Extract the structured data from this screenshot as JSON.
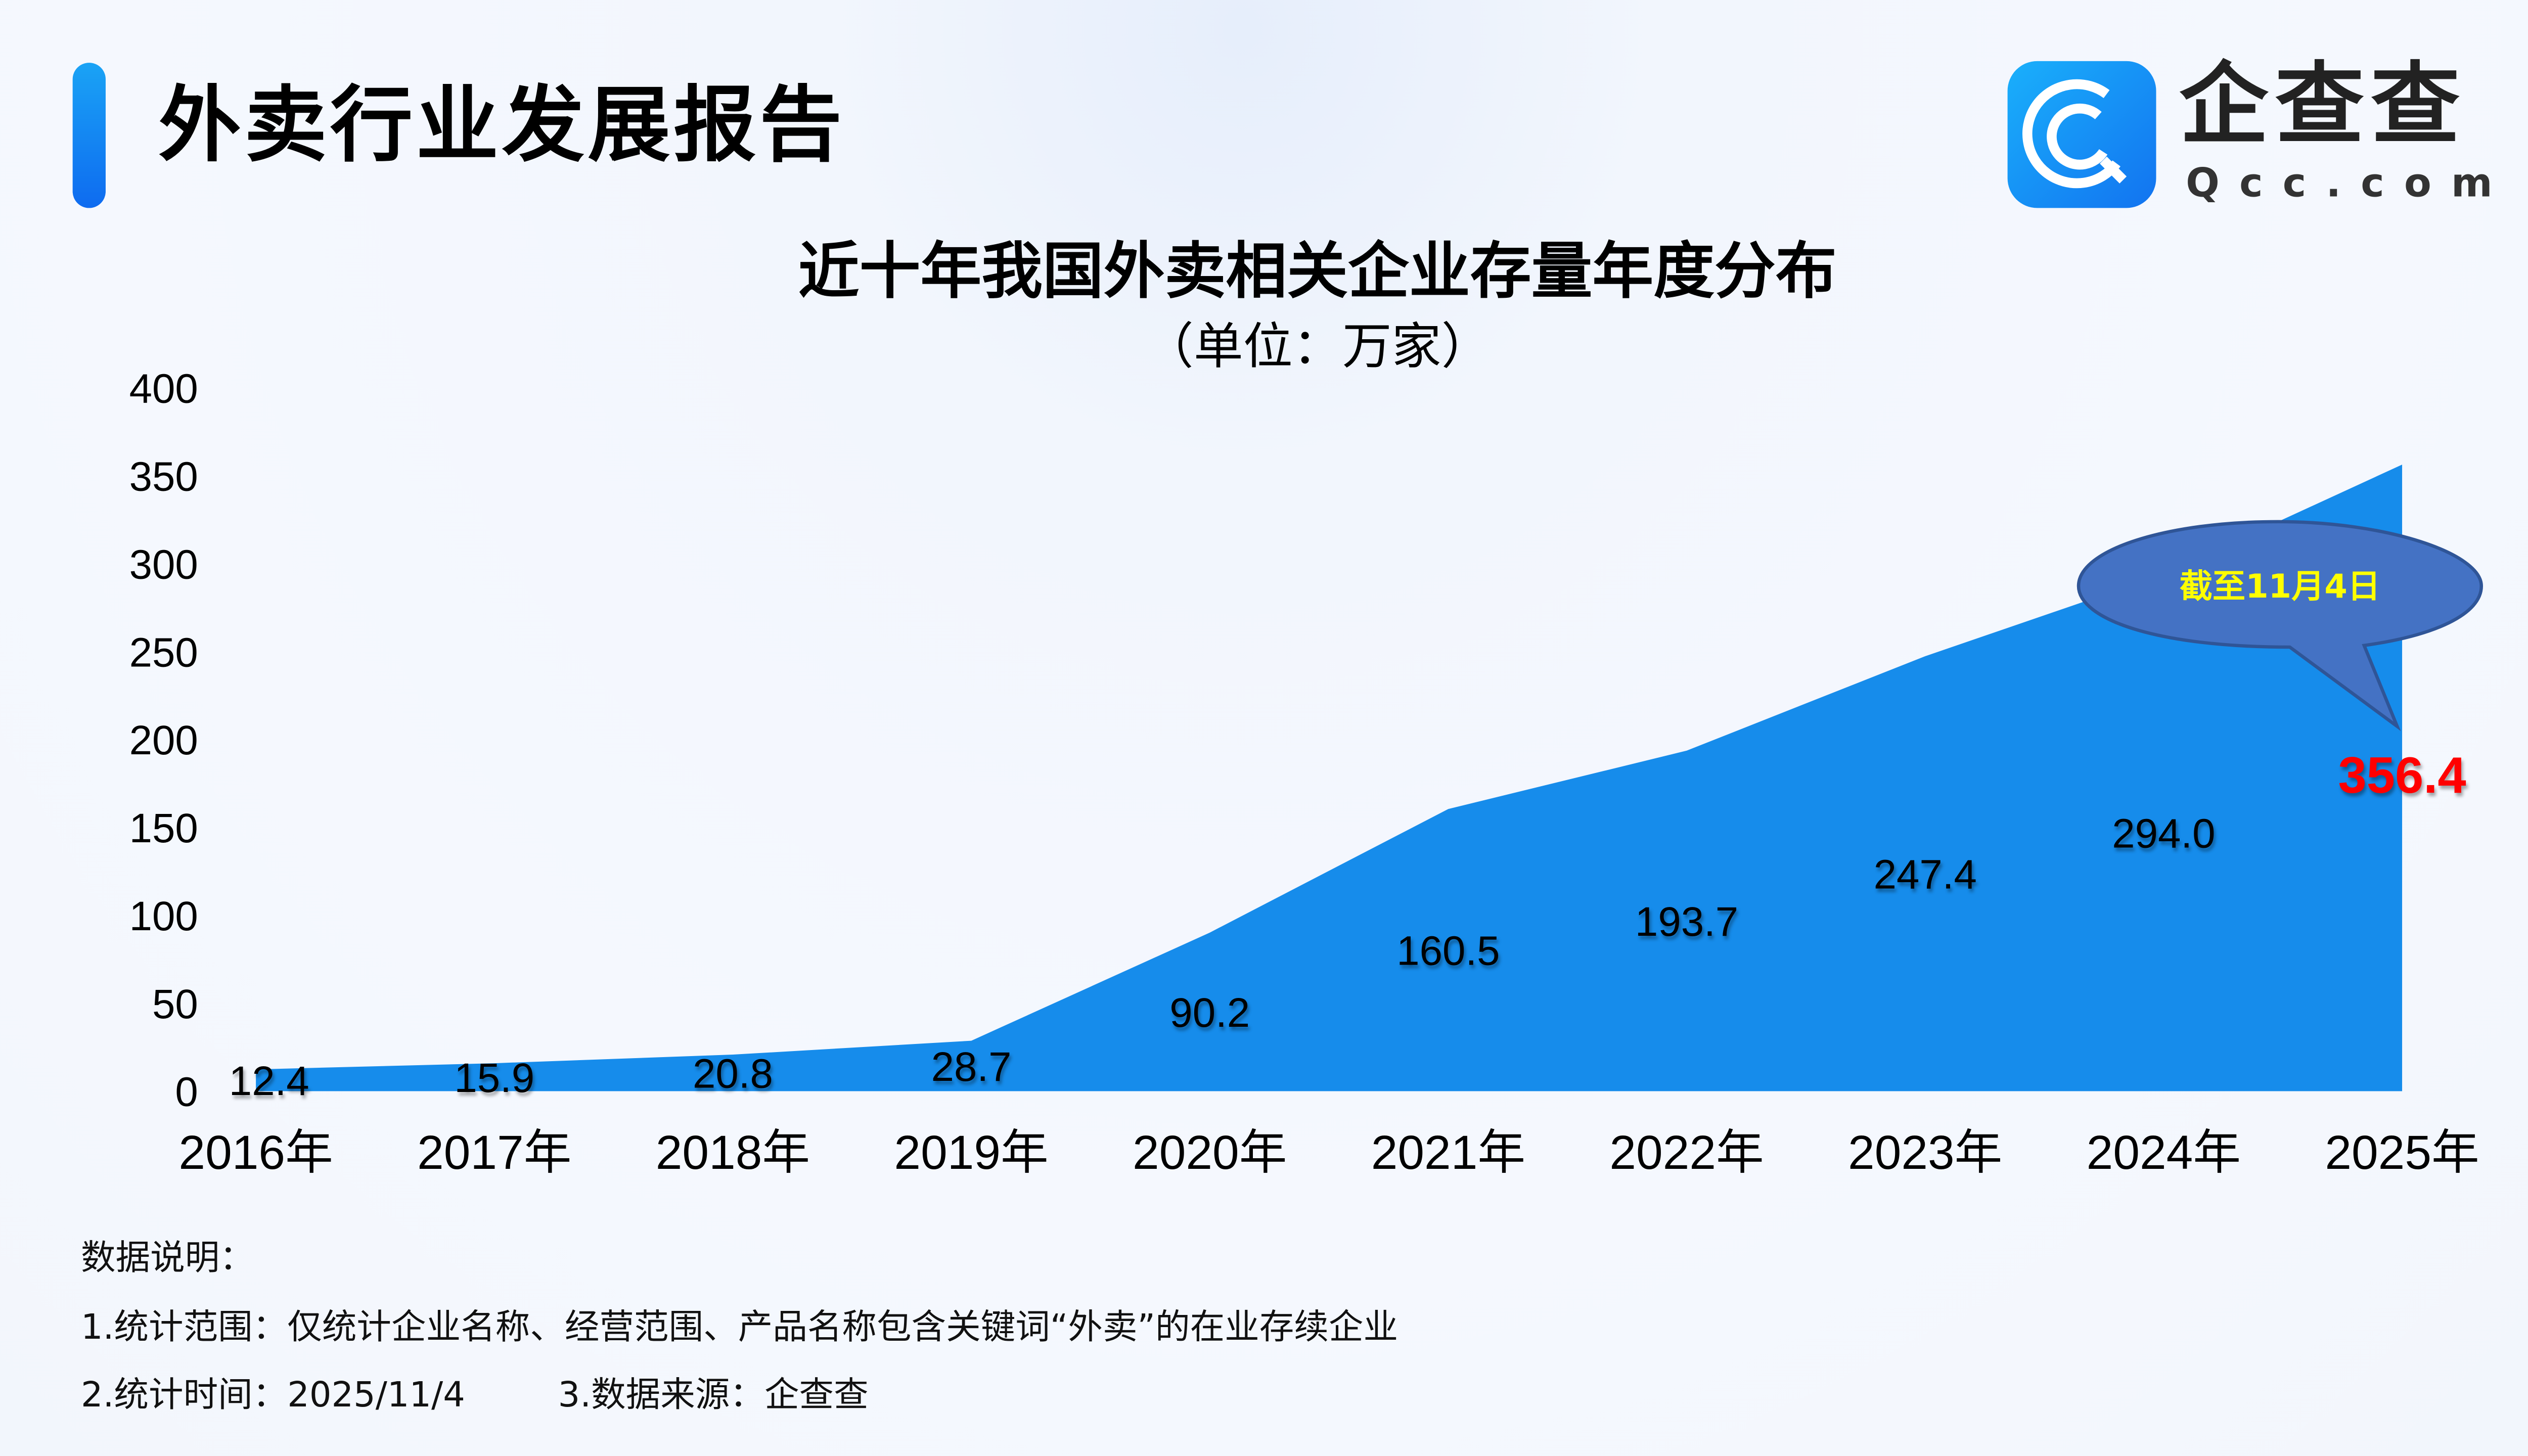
{
  "header": {
    "title": "外卖行业发展报告"
  },
  "logo": {
    "name_cn": "企查查",
    "name_en": "Qcc.com"
  },
  "chart_data": {
    "type": "area",
    "title": "近十年我国外卖相关企业存量年度分布",
    "subtitle": "（单位：万家）",
    "categories": [
      "2016年",
      "2017年",
      "2018年",
      "2019年",
      "2020年",
      "2021年",
      "2022年",
      "2023年",
      "2024年",
      "2025年"
    ],
    "values": [
      12.4,
      15.9,
      20.8,
      28.7,
      90.2,
      160.5,
      193.7,
      247.4,
      294.0,
      356.4
    ],
    "data_labels": [
      "12.4",
      "15.9",
      "20.8",
      "28.7",
      "90.2",
      "160.5",
      "193.7",
      "247.4",
      "294.0",
      "356.4"
    ],
    "ylim": [
      0,
      400
    ],
    "yticks": [
      "0",
      "50",
      "100",
      "150",
      "200",
      "250",
      "300",
      "350",
      "400"
    ],
    "grid": false,
    "fill_color": "#168CEB",
    "highlight_label_color": "#FF0000",
    "annotation": {
      "text": "截至11月4日",
      "target": "2025年",
      "fill": "#4472C4",
      "text_color": "#FFFF00"
    }
  },
  "notes": {
    "heading": "数据说明：",
    "line1": "1.统计范围：仅统计企业名称、经营范围、产品名称包含关键词“外卖”的在业存续企业",
    "line2a": "2.统计时间：2025/11/4",
    "line2b": "3.数据来源：企查查"
  }
}
